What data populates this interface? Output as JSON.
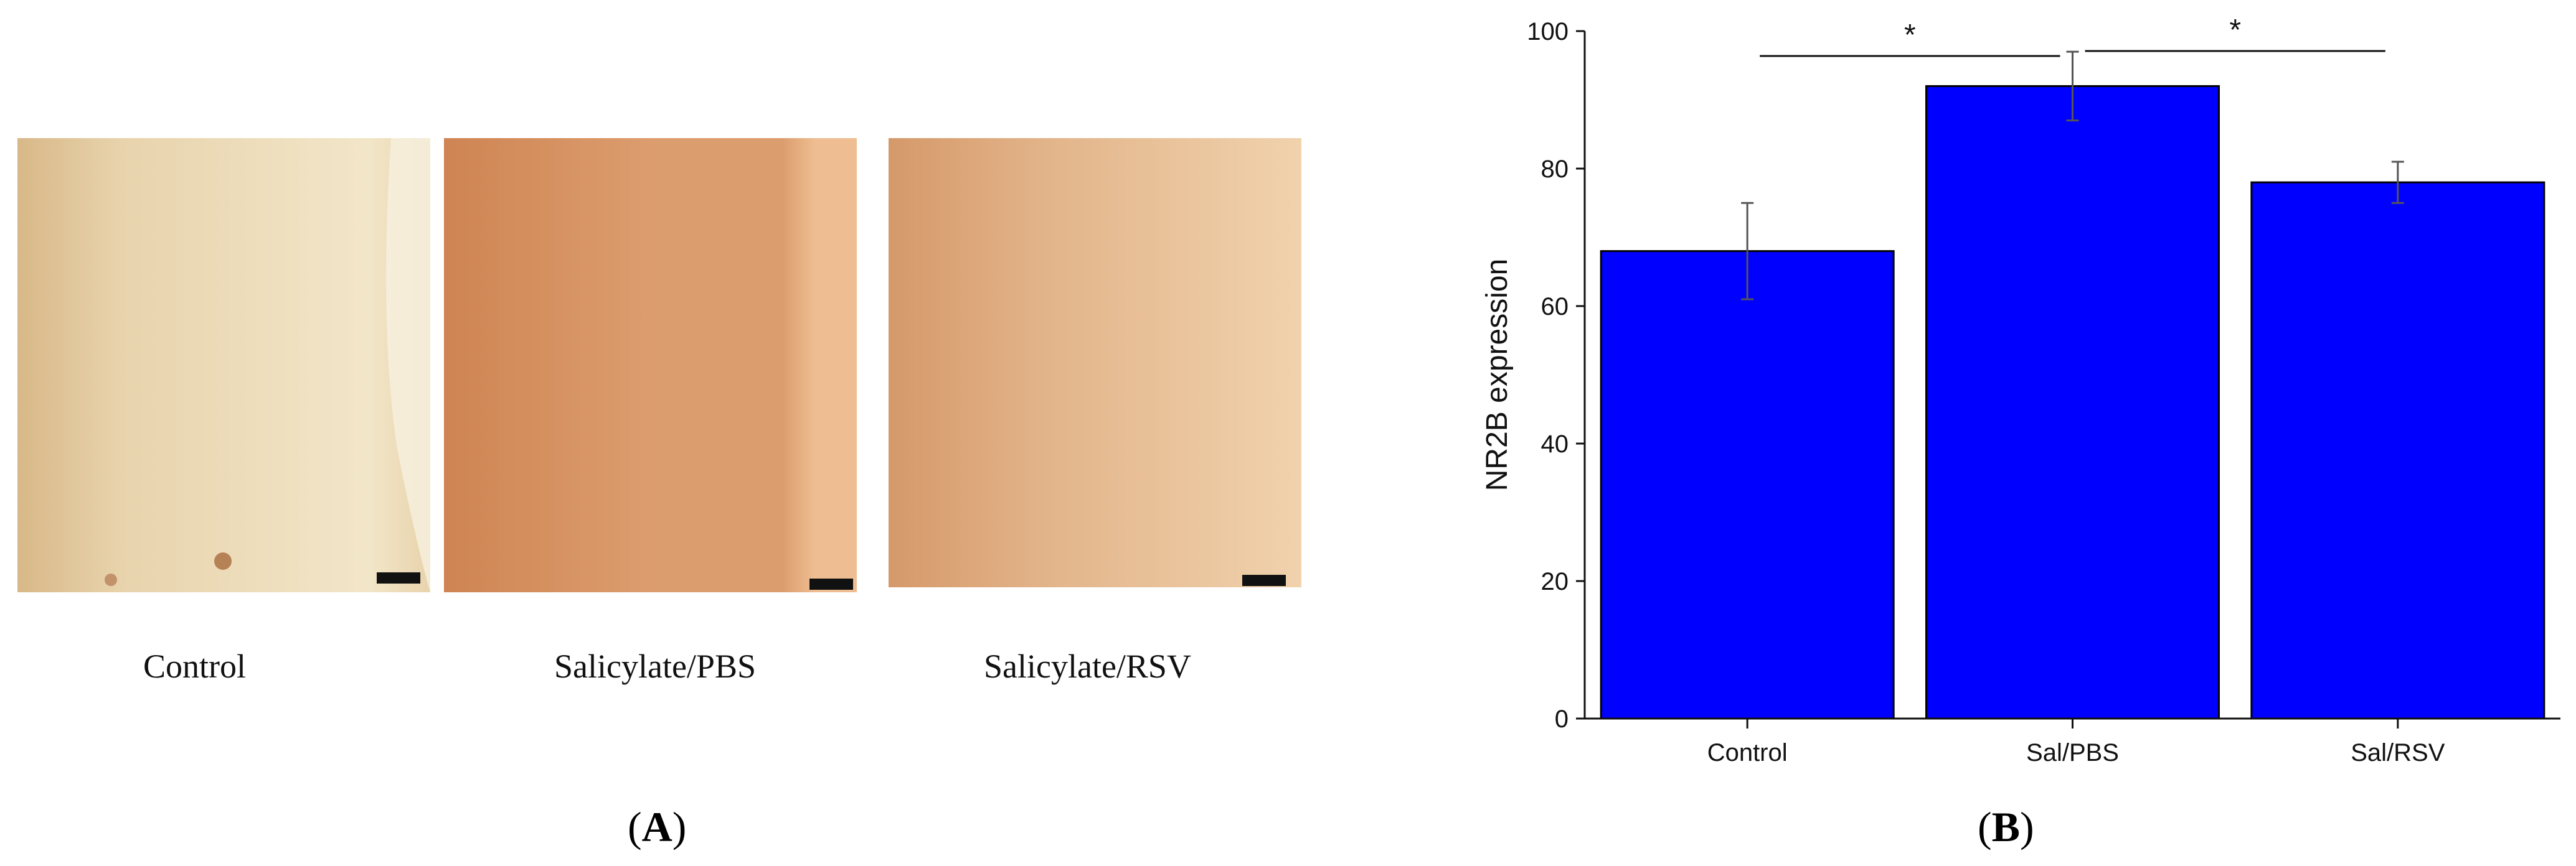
{
  "panel_a": {
    "images": [
      {
        "caption": "Control",
        "tint_main": "#e8d3ac",
        "tint_light": "#f2e6c9",
        "tint_dark": "#d8b888"
      },
      {
        "caption": "Salicylate/PBS",
        "tint_main": "#dc9d6e",
        "tint_light": "#eebe92",
        "tint_dark": "#cf8453"
      },
      {
        "caption": "Salicylate/RSV",
        "tint_main": "#e3b58b",
        "tint_light": "#f0d2ad",
        "tint_dark": "#d5996a"
      }
    ],
    "label_open": "(",
    "label_letter": "A",
    "label_close": ")"
  },
  "panel_b": {
    "label_open": "(",
    "label_letter": "B",
    "label_close": ")"
  },
  "chart_data": {
    "type": "bar",
    "categories": [
      "Control",
      "Sal/PBS",
      "Sal/RSV"
    ],
    "values": [
      68,
      92,
      78
    ],
    "errors": [
      7,
      5,
      3
    ],
    "ylabel": "NR2B expression",
    "ylim": [
      0,
      100
    ],
    "yticks": [
      0,
      20,
      40,
      60,
      80,
      100
    ],
    "bar_color": "#0000ff",
    "bar_edge_color": "#000000",
    "significance": [
      {
        "from": 0,
        "to": 1,
        "text": "*"
      },
      {
        "from": 1,
        "to": 2,
        "text": "*"
      }
    ],
    "grid": false
  }
}
